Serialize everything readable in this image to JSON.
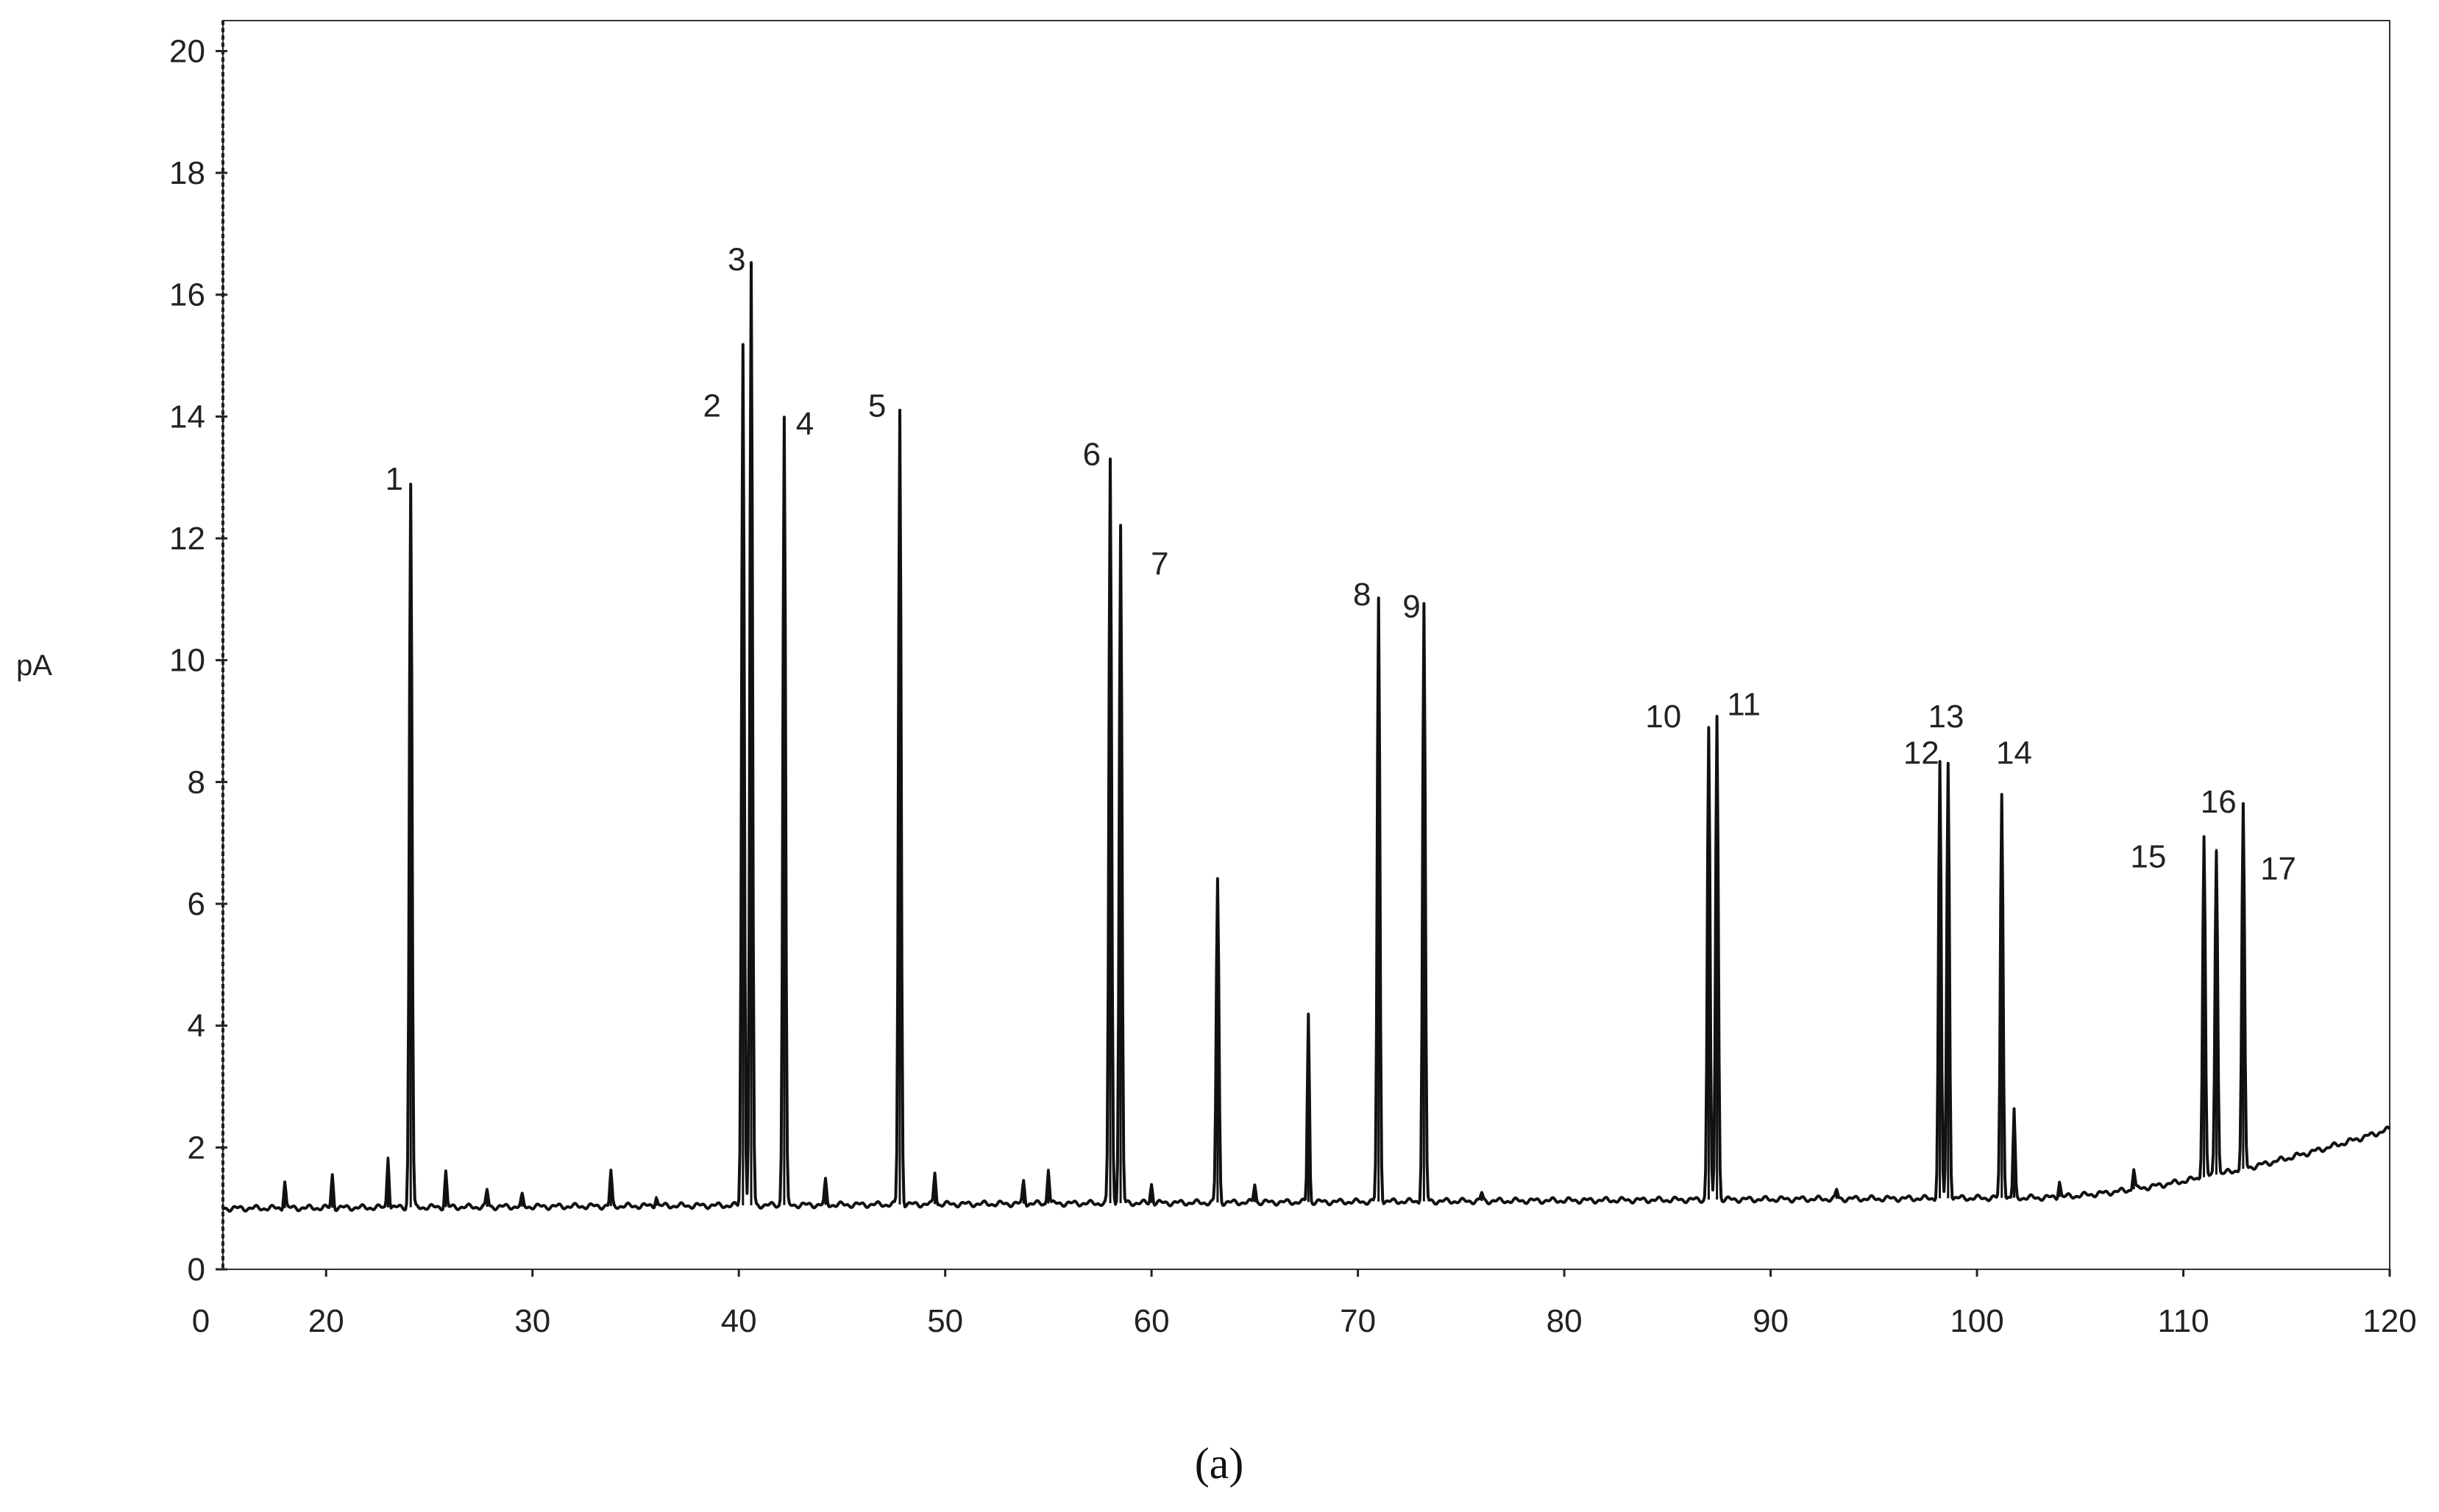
{
  "chart_data": {
    "type": "line",
    "title": "",
    "caption": "(a)",
    "ylabel": "pA",
    "xlabel": "",
    "xlim": [
      15,
      120
    ],
    "ylim": [
      0,
      20.5
    ],
    "xticks": [
      20,
      30,
      40,
      50,
      60,
      70,
      80,
      90,
      100,
      110,
      120
    ],
    "yticks": [
      0,
      2,
      4,
      6,
      8,
      10,
      12,
      14,
      16,
      18,
      20
    ],
    "grid": false,
    "legend": "none",
    "line_color": "#111111",
    "baseline": {
      "start": 1.0,
      "drift_start_x": 103,
      "end": 2.3
    },
    "peaks": [
      {
        "x": 18.0,
        "y": 1.45,
        "label": ""
      },
      {
        "x": 20.3,
        "y": 1.55,
        "label": ""
      },
      {
        "x": 23.0,
        "y": 1.85,
        "label": ""
      },
      {
        "x": 24.1,
        "y": 12.9,
        "label": "1"
      },
      {
        "x": 25.8,
        "y": 1.6,
        "label": ""
      },
      {
        "x": 27.8,
        "y": 1.3,
        "label": ""
      },
      {
        "x": 29.5,
        "y": 1.2,
        "label": ""
      },
      {
        "x": 33.8,
        "y": 1.6,
        "label": ""
      },
      {
        "x": 36.0,
        "y": 1.2,
        "label": ""
      },
      {
        "x": 40.2,
        "y": 15.2,
        "label": "2"
      },
      {
        "x": 40.6,
        "y": 16.5,
        "label": "3"
      },
      {
        "x": 42.2,
        "y": 14.0,
        "label": "4"
      },
      {
        "x": 44.2,
        "y": 1.45,
        "label": ""
      },
      {
        "x": 47.8,
        "y": 14.1,
        "label": "5"
      },
      {
        "x": 49.5,
        "y": 1.6,
        "label": ""
      },
      {
        "x": 53.8,
        "y": 1.45,
        "label": ""
      },
      {
        "x": 55.0,
        "y": 1.65,
        "label": ""
      },
      {
        "x": 58.0,
        "y": 13.3,
        "label": "6"
      },
      {
        "x": 58.5,
        "y": 12.2,
        "label": "7"
      },
      {
        "x": 60.0,
        "y": 1.4,
        "label": ""
      },
      {
        "x": 63.2,
        "y": 6.4,
        "label": ""
      },
      {
        "x": 65.0,
        "y": 1.4,
        "label": ""
      },
      {
        "x": 67.6,
        "y": 4.2,
        "label": ""
      },
      {
        "x": 71.0,
        "y": 11.0,
        "label": "8"
      },
      {
        "x": 73.2,
        "y": 10.9,
        "label": "9"
      },
      {
        "x": 76.0,
        "y": 1.25,
        "label": ""
      },
      {
        "x": 87.0,
        "y": 8.9,
        "label": "10"
      },
      {
        "x": 87.4,
        "y": 9.1,
        "label": "11"
      },
      {
        "x": 93.2,
        "y": 1.3,
        "label": ""
      },
      {
        "x": 98.2,
        "y": 8.3,
        "label": "12"
      },
      {
        "x": 98.6,
        "y": 8.3,
        "label": "13"
      },
      {
        "x": 101.2,
        "y": 7.8,
        "label": "14"
      },
      {
        "x": 101.8,
        "y": 2.6,
        "label": ""
      },
      {
        "x": 104.0,
        "y": 1.45,
        "label": ""
      },
      {
        "x": 107.6,
        "y": 1.65,
        "label": ""
      },
      {
        "x": 111.0,
        "y": 7.1,
        "label": "15"
      },
      {
        "x": 111.6,
        "y": 6.9,
        "label": "16"
      },
      {
        "x": 112.9,
        "y": 7.6,
        "label": "17"
      }
    ],
    "peak_labels": [
      {
        "text": "1",
        "x": 23.3,
        "y": 12.8
      },
      {
        "text": "2",
        "x": 38.7,
        "y": 14.0
      },
      {
        "text": "3",
        "x": 39.9,
        "y": 16.4
      },
      {
        "text": "4",
        "x": 43.2,
        "y": 13.7
      },
      {
        "text": "5",
        "x": 46.7,
        "y": 14.0
      },
      {
        "text": "6",
        "x": 57.1,
        "y": 13.2
      },
      {
        "text": "7",
        "x": 60.4,
        "y": 11.4
      },
      {
        "text": "8",
        "x": 70.2,
        "y": 10.9
      },
      {
        "text": "9",
        "x": 72.6,
        "y": 10.7
      },
      {
        "text": "10",
        "x": 84.8,
        "y": 8.9
      },
      {
        "text": "11",
        "x": 88.7,
        "y": 9.1
      },
      {
        "text": "12",
        "x": 97.3,
        "y": 8.3
      },
      {
        "text": "13",
        "x": 98.5,
        "y": 8.9
      },
      {
        "text": "14",
        "x": 101.8,
        "y": 8.3
      },
      {
        "text": "15",
        "x": 108.3,
        "y": 6.6
      },
      {
        "text": "16",
        "x": 111.7,
        "y": 7.5
      },
      {
        "text": "17",
        "x": 114.6,
        "y": 6.4
      }
    ]
  }
}
